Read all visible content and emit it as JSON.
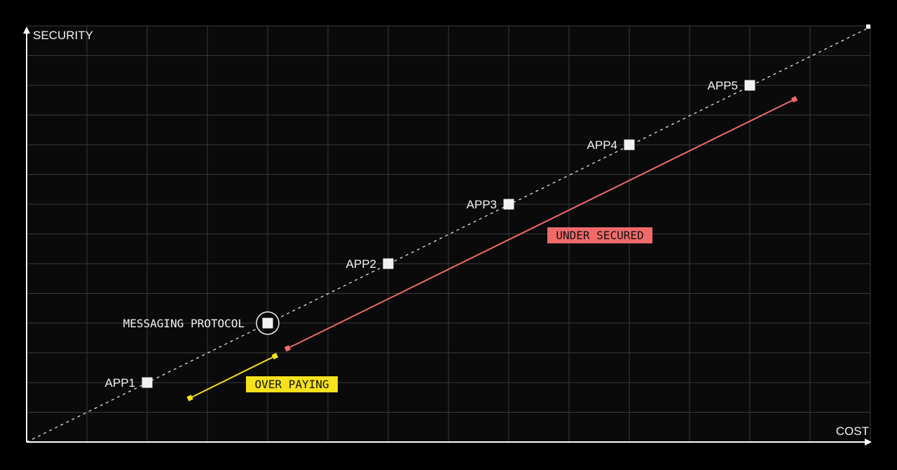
{
  "chart_data": {
    "type": "scatter",
    "xlabel": "COST",
    "ylabel": "SECURITY",
    "xlim": [
      0,
      14
    ],
    "ylim": [
      0,
      14
    ],
    "grid": true,
    "points": [
      {
        "label": "APP1",
        "x": 2,
        "y": 2
      },
      {
        "label": "MESSAGING PROTOCOL",
        "x": 4,
        "y": 4,
        "highlighted": true
      },
      {
        "label": "APP2",
        "x": 6,
        "y": 6
      },
      {
        "label": "APP3",
        "x": 8,
        "y": 8
      },
      {
        "label": "APP4",
        "x": 10,
        "y": 10
      },
      {
        "label": "APP5",
        "x": 12,
        "y": 12
      }
    ],
    "reference_line": {
      "style": "dashed",
      "from": [
        0,
        0
      ],
      "to": [
        14,
        14
      ]
    },
    "segments": [
      {
        "label": "UNDER SECURED",
        "color": "#f06a6a",
        "from": [
          4.33,
          3.15
        ],
        "to": [
          12.74,
          11.53
        ]
      },
      {
        "label": "OVER PAYING",
        "color": "#f5e11c",
        "from": [
          2.71,
          1.48
        ],
        "to": [
          4.12,
          2.89
        ]
      }
    ],
    "colors": {
      "background": "#0a0a0b",
      "grid": "#3a3a3a",
      "axis": "#ffffff",
      "point": "#f2f2f2"
    }
  }
}
